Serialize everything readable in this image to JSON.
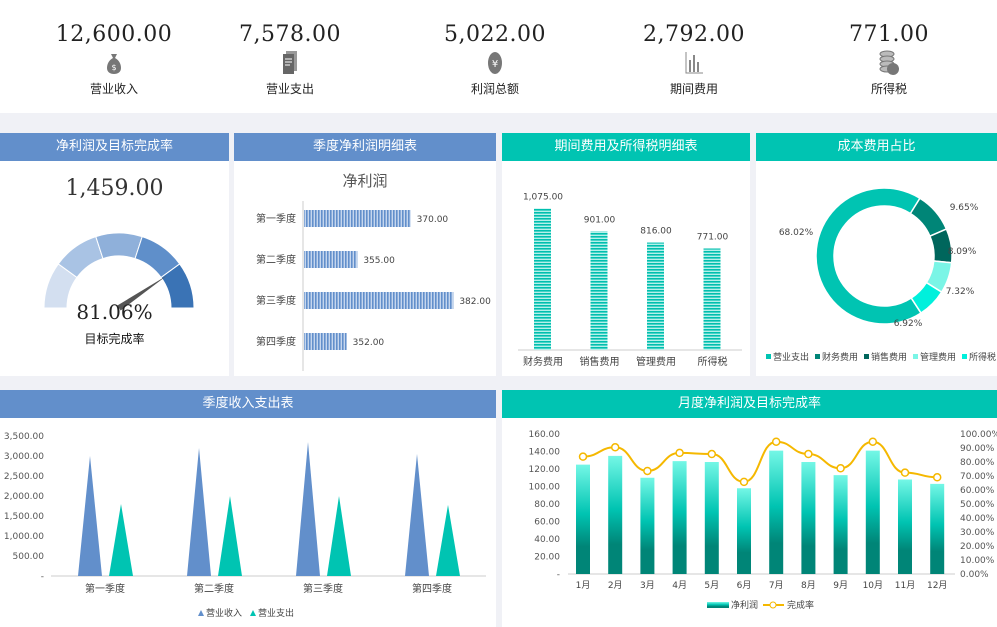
{
  "kpis": [
    {
      "value": "12,600.00",
      "label": "营业收入",
      "icon": "money-bag-icon"
    },
    {
      "value": "7,578.00",
      "label": "营业支出",
      "icon": "document-icon"
    },
    {
      "value": "5,022.00",
      "label": "利润总额",
      "icon": "yen-coin-icon"
    },
    {
      "value": "2,792.00",
      "label": "期间费用",
      "icon": "bar-chart-icon"
    },
    {
      "value": "771.00",
      "label": "所得税",
      "icon": "coin-stack-icon"
    }
  ],
  "gauge_panel": {
    "title": "净利润及目标完成率",
    "value": "1,459.00",
    "rate": "81.06%",
    "rate_fraction": 0.8106,
    "rate_label": "目标完成率"
  },
  "colors": {
    "blue": "#628fcb",
    "teal": "#00c4b2",
    "line": "#f5b800"
  },
  "chart_data": [
    {
      "id": "quarter-profit",
      "type": "bar",
      "title": "季度净利润明细表",
      "subtitle": "净利润",
      "categories": [
        "第一季度",
        "第二季度",
        "第三季度",
        "第四季度"
      ],
      "values": [
        370,
        355,
        382,
        352
      ],
      "labels": [
        "370.00",
        "355.00",
        "382.00",
        "352.00"
      ],
      "orientation": "horizontal"
    },
    {
      "id": "expense-detail",
      "type": "bar",
      "title": "期间费用及所得税明细表",
      "categories": [
        "财务费用",
        "销售费用",
        "管理费用",
        "所得税"
      ],
      "values": [
        1075,
        901,
        816,
        771
      ],
      "labels": [
        "1,075.00",
        "901.00",
        "816.00",
        "771.00"
      ]
    },
    {
      "id": "cost-share",
      "type": "pie",
      "title": "成本费用占比",
      "categories": [
        "营业支出",
        "财务费用",
        "销售费用",
        "管理费用",
        "所得税"
      ],
      "values": [
        68.02,
        9.65,
        8.09,
        7.32,
        6.92
      ],
      "labels": [
        "68.02%",
        "9.65%",
        "8.09%",
        "7.32%",
        "6.92%"
      ],
      "colors": [
        "#00c4b2",
        "#008577",
        "#00665c",
        "#7af5e6",
        "#00f0dc"
      ]
    },
    {
      "id": "quarter-income",
      "type": "bar",
      "title": "季度收入支出表",
      "categories": [
        "第一季度",
        "第二季度",
        "第三季度",
        "第四季度"
      ],
      "series": [
        {
          "name": "营业收入",
          "values": [
            3000,
            3200,
            3350,
            3050
          ]
        },
        {
          "name": "营业支出",
          "values": [
            1800,
            2000,
            2000,
            1778
          ]
        }
      ],
      "ylim": [
        0,
        3500
      ],
      "yticks": [
        "3,500.00",
        "3,000.00",
        "2,500.00",
        "2,000.00",
        "1,500.00",
        "1,000.00",
        "500.00",
        "-"
      ]
    },
    {
      "id": "monthly-profit",
      "type": "bar",
      "title": "月度净利润及目标完成率",
      "categories": [
        "1月",
        "2月",
        "3月",
        "4月",
        "5月",
        "6月",
        "7月",
        "8月",
        "9月",
        "10月",
        "11月",
        "12月"
      ],
      "series": [
        {
          "name": "净利润",
          "type": "bar",
          "values": [
            125,
            135,
            110,
            129,
            128,
            98,
            141,
            128,
            113,
            141,
            108,
            103
          ]
        },
        {
          "name": "完成率",
          "type": "line",
          "values": [
            83.8,
            90.5,
            73.6,
            86.5,
            85.7,
            65.8,
            94.5,
            85.7,
            75.5,
            94.5,
            72.4,
            69.1
          ]
        }
      ],
      "ylim": [
        0,
        160
      ],
      "y2lim": [
        0,
        100
      ],
      "yticks": [
        "160.00",
        "140.00",
        "120.00",
        "100.00",
        "80.00",
        "60.00",
        "40.00",
        "20.00",
        "-"
      ],
      "y2ticks": [
        "100.00%",
        "90.00%",
        "80.00%",
        "70.00%",
        "60.00%",
        "50.00%",
        "40.00%",
        "30.00%",
        "20.00%",
        "10.00%",
        "0.00%"
      ]
    }
  ]
}
